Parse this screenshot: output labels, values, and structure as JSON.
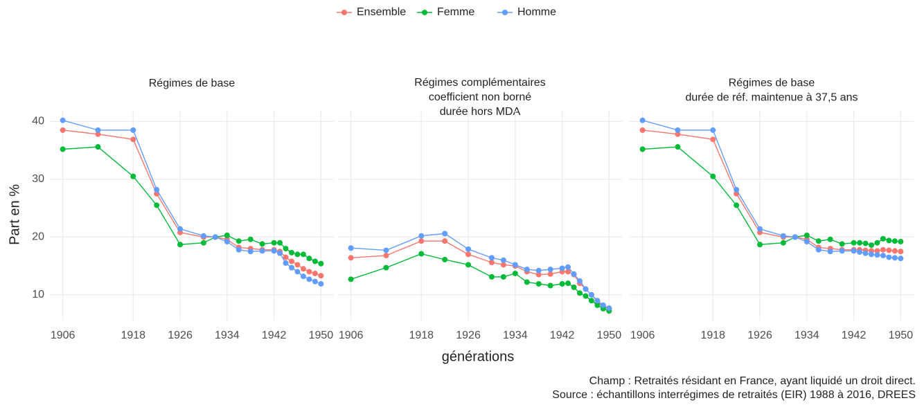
{
  "xlabel": "générations",
  "ylabel": "Part en %",
  "caption": [
    "Champ : Retraités résidant en France, ayant liquidé un droit direct.",
    "Source : échantillons interrégimes de retraités (EIR) 1988 à 2016, DREES"
  ],
  "chart_data": [
    {
      "type": "line",
      "title": [
        "Régimes de base"
      ],
      "x": [
        1906,
        1912,
        1918,
        1922,
        1926,
        1930,
        1932,
        1934,
        1936,
        1938,
        1940,
        1942,
        1943,
        1944,
        1945,
        1946,
        1947,
        1948,
        1949,
        1950
      ],
      "xlim": [
        1903.8,
        1952.2
      ],
      "xticks": [
        1906,
        1918,
        1926,
        1934,
        1942,
        1950
      ],
      "ylim": [
        5.55,
        41.85
      ],
      "yticks": [
        10,
        20,
        30,
        40
      ],
      "grid": true,
      "series": [
        {
          "name": "Ensemble",
          "color": "#f8766d",
          "values": [
            38.5,
            37.8,
            36.9,
            27.5,
            20.8,
            20.0,
            20.0,
            19.6,
            18.2,
            18.0,
            17.8,
            17.8,
            17.5,
            16.5,
            15.8,
            15.2,
            14.5,
            14.0,
            13.7,
            13.3
          ]
        },
        {
          "name": "Femme",
          "color": "#00ba38",
          "values": [
            35.2,
            35.6,
            30.5,
            25.5,
            18.7,
            19.0,
            20.0,
            20.3,
            19.3,
            19.6,
            18.8,
            19.0,
            19.0,
            18.0,
            17.3,
            17.0,
            17.0,
            16.3,
            15.8,
            15.4
          ]
        },
        {
          "name": "Homme",
          "color": "#619cff",
          "values": [
            40.2,
            38.5,
            38.5,
            28.2,
            21.4,
            20.2,
            20.0,
            19.2,
            17.8,
            17.5,
            17.6,
            17.6,
            17.2,
            15.5,
            14.7,
            14.0,
            13.2,
            12.7,
            12.3,
            11.9
          ]
        }
      ]
    },
    {
      "type": "line",
      "title": [
        "Régimes complémentaires",
        "coefficient non borné",
        "durée hors MDA"
      ],
      "x": [
        1906,
        1912,
        1918,
        1922,
        1926,
        1930,
        1932,
        1934,
        1936,
        1938,
        1940,
        1942,
        1943,
        1944,
        1945,
        1946,
        1947,
        1948,
        1949,
        1950
      ],
      "xlim": [
        1903.8,
        1952.2
      ],
      "xticks": [
        1906,
        1918,
        1926,
        1934,
        1942,
        1950
      ],
      "ylim": [
        5.55,
        41.85
      ],
      "yticks": [
        10,
        20,
        30,
        40
      ],
      "grid": true,
      "series": [
        {
          "name": "Ensemble",
          "color": "#f8766d",
          "values": [
            16.4,
            16.8,
            19.3,
            19.3,
            17.0,
            15.6,
            15.2,
            15.0,
            14.0,
            13.5,
            13.6,
            14.0,
            14.0,
            13.5,
            12.0,
            11.0,
            10.0,
            8.8,
            8.0,
            7.6
          ]
        },
        {
          "name": "Femme",
          "color": "#00ba38",
          "values": [
            12.7,
            14.7,
            17.1,
            16.1,
            15.2,
            13.1,
            13.1,
            13.7,
            12.2,
            11.9,
            11.6,
            11.9,
            12.0,
            11.3,
            10.3,
            9.8,
            9.0,
            8.2,
            7.6,
            7.2
          ]
        },
        {
          "name": "Homme",
          "color": "#619cff",
          "values": [
            18.1,
            17.7,
            20.2,
            20.6,
            17.9,
            16.4,
            16.0,
            15.2,
            14.4,
            14.2,
            14.4,
            14.6,
            14.8,
            13.6,
            12.4,
            11.0,
            10.0,
            9.0,
            8.2,
            7.7
          ]
        }
      ]
    },
    {
      "type": "line",
      "title": [
        "Régimes de base",
        "durée de réf. maintenue à 37,5 ans"
      ],
      "x": [
        1906,
        1912,
        1918,
        1922,
        1926,
        1930,
        1932,
        1934,
        1936,
        1938,
        1940,
        1942,
        1943,
        1944,
        1945,
        1946,
        1947,
        1948,
        1949,
        1950
      ],
      "xlim": [
        1903.8,
        1952.2
      ],
      "xticks": [
        1906,
        1918,
        1926,
        1934,
        1942,
        1950
      ],
      "ylim": [
        5.55,
        41.85
      ],
      "yticks": [
        10,
        20,
        30,
        40
      ],
      "grid": true,
      "series": [
        {
          "name": "Ensemble",
          "color": "#f8766d",
          "values": [
            38.5,
            37.8,
            36.9,
            27.5,
            20.8,
            20.0,
            20.0,
            19.6,
            18.2,
            18.0,
            17.8,
            17.8,
            17.8,
            17.7,
            17.6,
            17.6,
            17.8,
            17.7,
            17.6,
            17.5
          ]
        },
        {
          "name": "Femme",
          "color": "#00ba38",
          "values": [
            35.2,
            35.6,
            30.5,
            25.5,
            18.7,
            19.0,
            20.0,
            20.3,
            19.3,
            19.6,
            18.8,
            19.0,
            19.0,
            18.9,
            18.6,
            19.0,
            19.7,
            19.4,
            19.3,
            19.2
          ]
        },
        {
          "name": "Homme",
          "color": "#619cff",
          "values": [
            40.2,
            38.5,
            38.5,
            28.2,
            21.4,
            20.2,
            20.0,
            19.2,
            17.8,
            17.5,
            17.6,
            17.6,
            17.4,
            17.2,
            17.0,
            16.9,
            16.8,
            16.5,
            16.4,
            16.3
          ]
        }
      ]
    }
  ]
}
